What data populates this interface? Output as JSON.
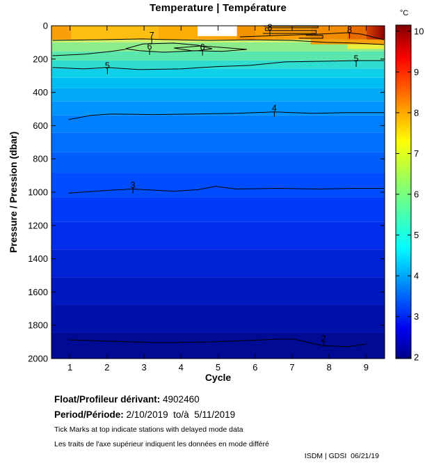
{
  "window": {
    "title": "Temperature | Température"
  },
  "chart_data": {
    "type": "heatmap",
    "title": "Temperature | Température",
    "xlabel": "Cycle",
    "ylabel": "Pressure / Pression (dbar)",
    "x_ticks": [
      1,
      2,
      3,
      4,
      5,
      6,
      7,
      8,
      9
    ],
    "y_ticks": [
      0,
      200,
      400,
      600,
      800,
      1000,
      1200,
      1400,
      1600,
      1800,
      2000
    ],
    "x_range": [
      0.5,
      9.5
    ],
    "y_range": [
      0,
      2000
    ],
    "grid": false,
    "colorbar": {
      "label": "°C",
      "ticks": [
        2,
        3,
        4,
        5,
        6,
        7,
        8,
        9,
        10
      ],
      "range": [
        1.97,
        10.15
      ],
      "gradient_stops": [
        {
          "v": 1.97,
          "color": "#000085"
        },
        {
          "v": 2.7,
          "color": "#0000F3"
        },
        {
          "v": 4.7,
          "color": "#00FFFF"
        },
        {
          "v": 6.05,
          "color": "#7BFF7B"
        },
        {
          "v": 7.3,
          "color": "#FFFF00"
        },
        {
          "v": 9.35,
          "color": "#FF0000"
        },
        {
          "v": 10.15,
          "color": "#800000"
        }
      ]
    },
    "surface_cells": [
      {
        "c0": 0.5,
        "c1": 1.04,
        "p0": 0,
        "p1": 83,
        "color": "#F9A008"
      },
      {
        "c0": 1.04,
        "c1": 3.38,
        "p0": 0,
        "p1": 83,
        "color": "#FDBE12"
      },
      {
        "c0": 3.38,
        "c1": 4.45,
        "p0": 0,
        "p1": 83,
        "color": "#FBAD06"
      },
      {
        "c0": 4.45,
        "c1": 5.51,
        "p0": 0,
        "p1": 62,
        "color": "#FFFFFF"
      },
      {
        "c0": 4.45,
        "c1": 5.51,
        "p0": 62,
        "p1": 83,
        "color": "#FBA606"
      },
      {
        "c0": 5.51,
        "c1": 6.02,
        "p0": 0,
        "p1": 83,
        "color": "#F29200"
      },
      {
        "c0": 6.02,
        "c1": 6.51,
        "p0": 0,
        "p1": 83,
        "color": "#FB9E00"
      },
      {
        "c0": 6.51,
        "c1": 7.5,
        "p0": 0,
        "p1": 83,
        "color": "#FA9E07"
      },
      {
        "c0": 7.5,
        "c1": 8.49,
        "p0": 0,
        "p1": 83,
        "color": "#F28C00"
      },
      {
        "c0": 8.49,
        "c1": 9.0,
        "p0": 0,
        "p1": 83,
        "color": "#E86C00"
      },
      {
        "c0": 9.0,
        "c1": 9.5,
        "p0": 0,
        "p1": 83,
        "colors": [
          "#D94500",
          "#8B0000"
        ]
      }
    ],
    "overlays": [
      {
        "c0": 7.5,
        "c1": 9.5,
        "p0": 83,
        "p1": 112,
        "color": "#F8A008"
      },
      {
        "c0": 8.49,
        "c1": 9.5,
        "p0": 112,
        "p1": 140,
        "color": "#EDED40"
      }
    ],
    "depth_bands": [
      {
        "p0": 83,
        "p1": 100,
        "color": "#CFF06A"
      },
      {
        "p0": 100,
        "p1": 154,
        "color": "#8CEC8C"
      },
      {
        "p0": 154,
        "p1": 209,
        "color": "#5BE6AD"
      },
      {
        "p0": 209,
        "p1": 259,
        "color": "#2EDDD0"
      },
      {
        "p0": 259,
        "p1": 313,
        "color": "#0FD0E8"
      },
      {
        "p0": 313,
        "p1": 376,
        "color": "#00BDF2"
      },
      {
        "p0": 376,
        "p1": 455,
        "color": "#00A9F8"
      },
      {
        "p0": 455,
        "p1": 539,
        "color": "#0094FF"
      },
      {
        "p0": 539,
        "p1": 643,
        "color": "#0080FF"
      },
      {
        "p0": 643,
        "p1": 760,
        "color": "#006FFF"
      },
      {
        "p0": 760,
        "p1": 885,
        "color": "#005EFF"
      },
      {
        "p0": 885,
        "p1": 1031,
        "color": "#004CFF"
      },
      {
        "p0": 1031,
        "p1": 1177,
        "color": "#003AF8"
      },
      {
        "p0": 1177,
        "p1": 1344,
        "color": "#002EEA"
      },
      {
        "p0": 1344,
        "p1": 1511,
        "color": "#0022D6"
      },
      {
        "p0": 1511,
        "p1": 1678,
        "color": "#0018C0"
      },
      {
        "p0": 1678,
        "p1": 1845,
        "color": "#0010A8"
      },
      {
        "p0": 1845,
        "p1": 2000,
        "color": "#000A92"
      }
    ],
    "contours": [
      {
        "level": 8,
        "points": [
          [
            5.59,
            67
          ],
          [
            6.62,
            58
          ],
          [
            7.74,
            50
          ],
          [
            8.49,
            42
          ],
          [
            8.87,
            50
          ],
          [
            9.48,
            84
          ]
        ],
        "labels": [
          {
            "c": 8.55,
            "p": 25,
            "t": "8"
          }
        ]
      },
      {
        "level": 8,
        "points": [
          [
            6.21,
            46
          ],
          [
            7.65,
            46
          ],
          [
            7.65,
            29
          ],
          [
            6.28,
            29
          ],
          [
            6.28,
            12
          ],
          [
            7.7,
            12
          ],
          [
            7.7,
            2
          ],
          [
            6.24,
            2
          ]
        ],
        "labels": [
          {
            "c": 6.4,
            "p": 10,
            "t": "8"
          }
        ]
      },
      {
        "level": 8,
        "points": [
          [
            7.18,
            75
          ],
          [
            7.83,
            75
          ],
          [
            7.83,
            58
          ],
          [
            7.37,
            58
          ]
        ],
        "labels": []
      },
      {
        "level": 7,
        "points": [
          [
            0.53,
            88
          ],
          [
            1.75,
            84
          ],
          [
            2.97,
            79
          ],
          [
            3.4,
            82
          ],
          [
            4.75,
            88
          ],
          [
            5.87,
            84
          ],
          [
            6.99,
            88
          ],
          [
            7.93,
            100
          ],
          [
            8.68,
            104
          ],
          [
            9.48,
            113
          ]
        ],
        "labels": [
          {
            "c": 3.21,
            "p": 58,
            "t": "7"
          }
        ]
      },
      {
        "level": 6,
        "closed": true,
        "points": [
          [
            2.5,
            138
          ],
          [
            2.97,
            109
          ],
          [
            3.81,
            104
          ],
          [
            4.46,
            117
          ],
          [
            4.84,
            138
          ],
          [
            4.46,
            150
          ],
          [
            3.53,
            159
          ],
          [
            2.87,
            150
          ]
        ],
        "labels": [
          {
            "c": 3.15,
            "p": 125,
            "t": "6"
          }
        ]
      },
      {
        "level": 6,
        "closed": true,
        "points": [
          [
            3.81,
            134
          ],
          [
            4.56,
            121
          ],
          [
            5.31,
            134
          ],
          [
            5.78,
            142
          ],
          [
            5.12,
            154
          ],
          [
            4.28,
            150
          ]
        ],
        "labels": [
          {
            "c": 4.58,
            "p": 129,
            "t": "6"
          }
        ]
      },
      {
        "level": 6,
        "points": [
          [
            0.53,
            180
          ],
          [
            1.37,
            171
          ],
          [
            2.12,
            154
          ],
          [
            2.5,
            142
          ]
        ],
        "labels": []
      },
      {
        "level": 5,
        "points": [
          [
            0.53,
            251
          ],
          [
            1.37,
            259
          ],
          [
            2.01,
            251
          ],
          [
            2.87,
            263
          ],
          [
            4.0,
            259
          ],
          [
            4.93,
            246
          ],
          [
            5.87,
            238
          ],
          [
            6.81,
            217
          ],
          [
            7.93,
            213
          ],
          [
            8.73,
            209
          ],
          [
            9.48,
            209
          ]
        ],
        "labels": [
          {
            "c": 2.01,
            "p": 240,
            "t": "5"
          },
          {
            "c": 8.73,
            "p": 198,
            "t": "5"
          }
        ]
      },
      {
        "level": 4,
        "points": [
          [
            0.96,
            564
          ],
          [
            1.56,
            539
          ],
          [
            2.12,
            530
          ],
          [
            3.25,
            534
          ],
          [
            4.37,
            530
          ],
          [
            5.49,
            526
          ],
          [
            6.52,
            518
          ],
          [
            7.55,
            526
          ],
          [
            8.49,
            522
          ],
          [
            9.48,
            522
          ]
        ],
        "labels": [
          {
            "c": 6.52,
            "p": 495,
            "t": "4"
          }
        ]
      },
      {
        "level": 3,
        "points": [
          [
            0.96,
            1006
          ],
          [
            1.94,
            990
          ],
          [
            2.7,
            981
          ],
          [
            3.81,
            994
          ],
          [
            4.46,
            985
          ],
          [
            4.93,
            965
          ],
          [
            5.49,
            981
          ],
          [
            6.62,
            977
          ],
          [
            7.74,
            981
          ],
          [
            8.68,
            977
          ],
          [
            9.48,
            977
          ]
        ],
        "labels": [
          {
            "c": 2.7,
            "p": 958,
            "t": "3"
          }
        ]
      },
      {
        "level": 2,
        "points": [
          [
            0.96,
            1887
          ],
          [
            2.12,
            1896
          ],
          [
            3.43,
            1904
          ],
          [
            4.75,
            1900
          ],
          [
            5.87,
            1891
          ],
          [
            6.62,
            1883
          ],
          [
            7.05,
            1883
          ],
          [
            7.8,
            1921
          ],
          [
            8.49,
            1929
          ],
          [
            9.01,
            1912
          ]
        ],
        "labels": [
          {
            "c": 7.85,
            "p": 1880,
            "t": "2"
          }
        ]
      }
    ]
  },
  "footer": {
    "float_label": "Float/Profileur dérivant:",
    "float_value": " 4902460",
    "period_label": "Period/Période:",
    "period_value": " 2/10/2019  to/à  5/11/2019",
    "note_en": "Tick Marks at top indicate stations with delayed mode data",
    "note_fr": "Les traits de l'axe supérieur indiquent les données en mode différé",
    "credit": "ISDM | GDSI  06/21/19"
  }
}
